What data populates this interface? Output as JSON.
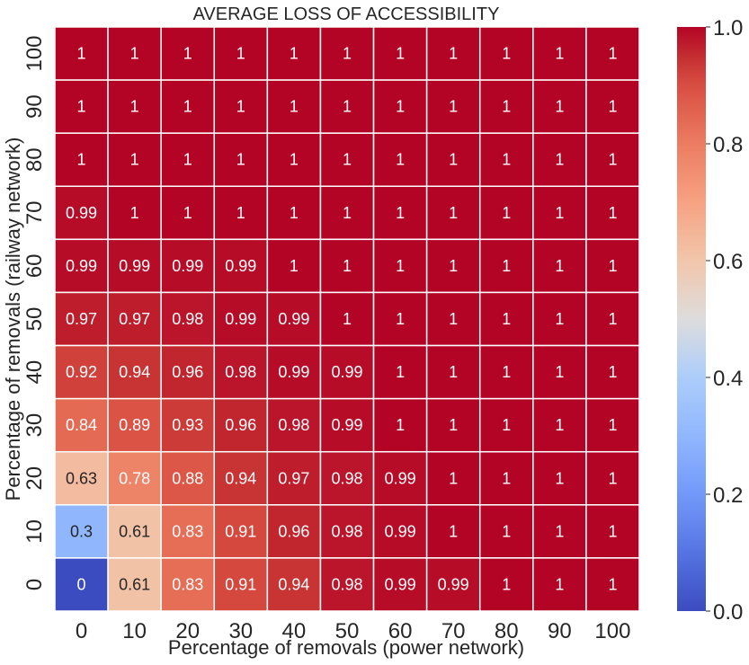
{
  "chart_data": {
    "type": "heatmap",
    "title": "AVERAGE LOSS OF ACCESSIBILITY",
    "xlabel": "Percentage of removals (power network)",
    "ylabel": "Percentage of removals (railway network)",
    "x_categories": [
      "0",
      "10",
      "20",
      "30",
      "40",
      "50",
      "60",
      "70",
      "80",
      "90",
      "100"
    ],
    "y_categories": [
      "100",
      "90",
      "80",
      "70",
      "60",
      "50",
      "40",
      "30",
      "20",
      "10",
      "0"
    ],
    "values": [
      [
        1,
        1,
        1,
        1,
        1,
        1,
        1,
        1,
        1,
        1,
        1
      ],
      [
        1,
        1,
        1,
        1,
        1,
        1,
        1,
        1,
        1,
        1,
        1
      ],
      [
        1,
        1,
        1,
        1,
        1,
        1,
        1,
        1,
        1,
        1,
        1
      ],
      [
        0.99,
        1,
        1,
        1,
        1,
        1,
        1,
        1,
        1,
        1,
        1
      ],
      [
        0.99,
        0.99,
        0.99,
        0.99,
        1,
        1,
        1,
        1,
        1,
        1,
        1
      ],
      [
        0.97,
        0.97,
        0.98,
        0.99,
        0.99,
        1,
        1,
        1,
        1,
        1,
        1
      ],
      [
        0.92,
        0.94,
        0.96,
        0.98,
        0.99,
        0.99,
        1,
        1,
        1,
        1,
        1
      ],
      [
        0.84,
        0.89,
        0.93,
        0.96,
        0.98,
        0.99,
        1,
        1,
        1,
        1,
        1
      ],
      [
        0.63,
        0.78,
        0.88,
        0.94,
        0.97,
        0.98,
        0.99,
        1,
        1,
        1,
        1
      ],
      [
        0.3,
        0.61,
        0.83,
        0.91,
        0.96,
        0.98,
        0.99,
        1,
        1,
        1,
        1
      ],
      [
        0,
        0.61,
        0.83,
        0.91,
        0.94,
        0.98,
        0.99,
        0.99,
        1,
        1,
        1
      ]
    ],
    "colormap": "coolwarm",
    "colorbar": {
      "range": [
        0.0,
        1.0
      ],
      "ticks": [
        "0.0",
        "0.2",
        "0.4",
        "0.6",
        "0.8",
        "1.0"
      ]
    },
    "grid": false,
    "cell_border_color": "#ffffff"
  }
}
